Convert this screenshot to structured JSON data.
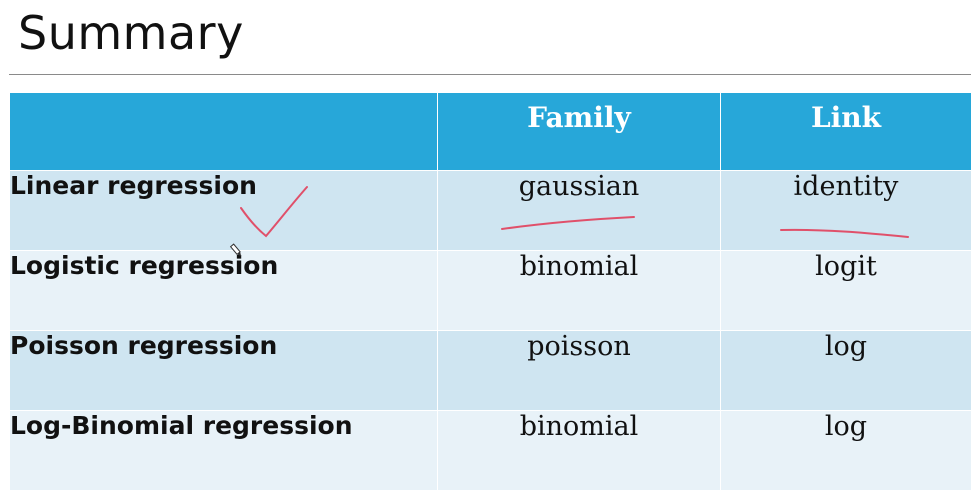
{
  "slide": {
    "title": "Summary"
  },
  "table": {
    "headers": [
      "",
      "Family",
      "Link"
    ],
    "rows": [
      {
        "method": "Linear regression",
        "family": "gaussian",
        "link": "identity"
      },
      {
        "method": "Logistic regression",
        "family": "binomial",
        "link": "logit"
      },
      {
        "method": "Poisson regression",
        "family": "poisson",
        "link": "log"
      },
      {
        "method": "Log-Binomial regression",
        "family": "binomial",
        "link": "log"
      }
    ]
  },
  "colors": {
    "header_bg": "#27a7d9",
    "row_dark": "#cfe5f1",
    "row_light": "#e8f2f8",
    "annotation_ink": "#e0506a"
  }
}
